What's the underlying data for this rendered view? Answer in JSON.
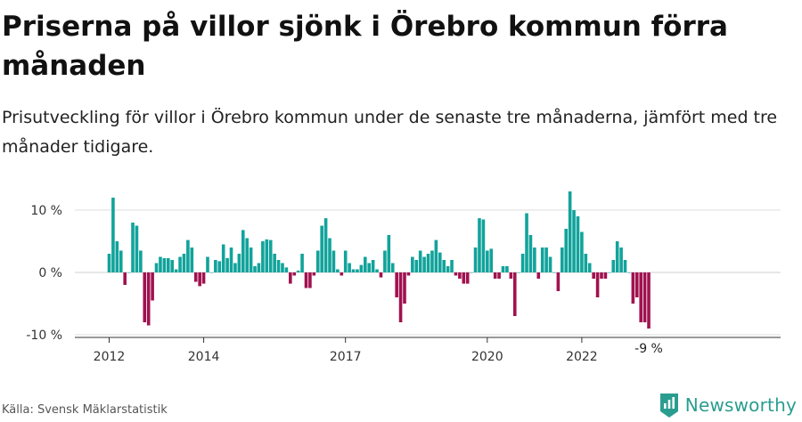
{
  "title": "Priserna på villor sjönk i Örebro kommun förra månaden",
  "subtitle": "Prisutveckling för villor i Örebro kommun under de senaste tre månaderna, jämfört med tre månader tidigare.",
  "source": "Källa: Svensk Mäklarstatistik",
  "brand": "Newsworthy",
  "colors": {
    "positive": "#11a39b",
    "negative": "#a0124f",
    "brand": "#2a9d8f"
  },
  "chart_data": {
    "type": "bar",
    "ylim": [
      -10,
      14
    ],
    "yticks": [
      {
        "value": 10,
        "label": "10 %"
      },
      {
        "value": 0,
        "label": "0 %"
      },
      {
        "value": -10,
        "label": "-10 %"
      }
    ],
    "xticks": [
      {
        "label": "2012",
        "year": 2012,
        "month": 1
      },
      {
        "label": "2014",
        "year": 2014,
        "month": 1
      },
      {
        "label": "2017",
        "year": 2017,
        "month": 1
      },
      {
        "label": "2020",
        "year": 2020,
        "month": 1
      },
      {
        "label": "2022",
        "year": 2022,
        "month": 1
      }
    ],
    "start": {
      "year": 2012,
      "month": 1
    },
    "end_label": "-9 %",
    "values": [
      3,
      12,
      5,
      3.5,
      -2,
      0,
      8,
      7.5,
      3.5,
      -8,
      -8.5,
      -4.5,
      1.5,
      2.5,
      2.3,
      2.3,
      2,
      0.5,
      2.5,
      3,
      5.2,
      4,
      -1.5,
      -2.2,
      -1.8,
      2.5,
      0,
      2,
      1.8,
      4.5,
      2.3,
      4,
      1.5,
      3,
      6.8,
      5.5,
      4,
      1,
      1.5,
      5,
      5.3,
      5.2,
      3,
      2,
      1.5,
      0.8,
      -1.8,
      -0.5,
      0.3,
      3,
      -2.5,
      -2.5,
      -0.5,
      3.5,
      7.5,
      8.7,
      5.5,
      3.5,
      0.5,
      -0.5,
      3.5,
      1.5,
      0.5,
      0.5,
      1.2,
      2.5,
      1.5,
      2,
      0.5,
      -0.8,
      3.5,
      6,
      1.5,
      -4,
      -8,
      -5,
      -0.5,
      2.5,
      2,
      3.5,
      2.5,
      3,
      3.5,
      5.2,
      3.2,
      2,
      1,
      2,
      -0.5,
      -1,
      -1.8,
      -1.8,
      0,
      4,
      8.7,
      8.5,
      3.5,
      3.8,
      -1,
      -1,
      1,
      1,
      -1,
      -7,
      0,
      3,
      9.5,
      6,
      4,
      -1,
      4,
      4,
      2.5,
      0,
      -3,
      4,
      7,
      13,
      10,
      9,
      6.5,
      3,
      1.5,
      -1,
      -4,
      -1,
      -1,
      0,
      2,
      5,
      4,
      2,
      0,
      -5,
      -4,
      -8,
      -8,
      -9
    ]
  }
}
